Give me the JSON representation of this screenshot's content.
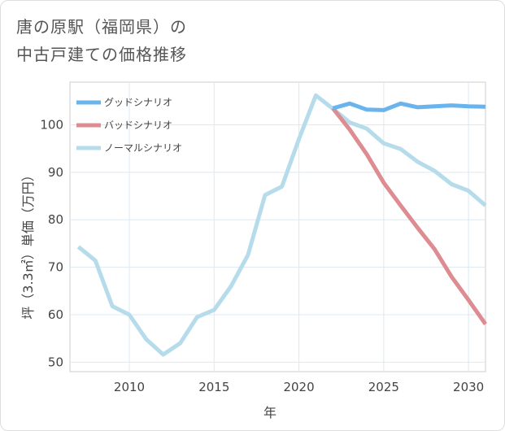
{
  "title": {
    "line1": "唐の原駅（福岡県）の",
    "line2": "中古戸建ての価格推移"
  },
  "chart_data": {
    "type": "line",
    "title": "唐の原駅（福岡県）の中古戸建ての価格推移",
    "xlabel": "年",
    "ylabel": "坪（3.3㎡）単価（万円）",
    "xlim": [
      2006.5,
      2031
    ],
    "ylim": [
      48,
      109
    ],
    "x_ticks": [
      2010,
      2015,
      2020,
      2025,
      2030
    ],
    "y_ticks": [
      50,
      60,
      70,
      80,
      90,
      100
    ],
    "legend_position": "top-left",
    "series": [
      {
        "name": "グッドシナリオ",
        "color": "#6ab4ee",
        "x": [
          2022,
          2023,
          2024,
          2025,
          2026,
          2027,
          2028,
          2029,
          2030,
          2031
        ],
        "values": [
          103.5,
          104.5,
          103.2,
          103.1,
          104.5,
          103.7,
          103.9,
          104.1,
          103.9,
          103.8
        ]
      },
      {
        "name": "バッドシナリオ",
        "color": "#dd8c92",
        "x": [
          2022,
          2023,
          2024,
          2025,
          2026,
          2027,
          2028,
          2029,
          2030,
          2031
        ],
        "values": [
          103.5,
          99.0,
          93.8,
          87.8,
          83.0,
          78.3,
          73.8,
          68.0,
          63.1,
          58.0
        ]
      },
      {
        "name": "ノーマルシナリオ",
        "color": "#b6dcec",
        "x": [
          2007,
          2008,
          2009,
          2010,
          2011,
          2012,
          2013,
          2014,
          2015,
          2016,
          2017,
          2018,
          2019,
          2020,
          2021,
          2022,
          2023,
          2024,
          2025,
          2026,
          2027,
          2028,
          2029,
          2030,
          2031
        ],
        "values": [
          74.3,
          71.4,
          61.8,
          60.0,
          54.8,
          51.6,
          54.0,
          59.5,
          61.0,
          66.0,
          72.6,
          85.2,
          87.0,
          97.0,
          106.2,
          103.4,
          100.5,
          99.2,
          96.1,
          94.9,
          92.2,
          90.3,
          87.5,
          86.1,
          83.0
        ]
      }
    ]
  }
}
